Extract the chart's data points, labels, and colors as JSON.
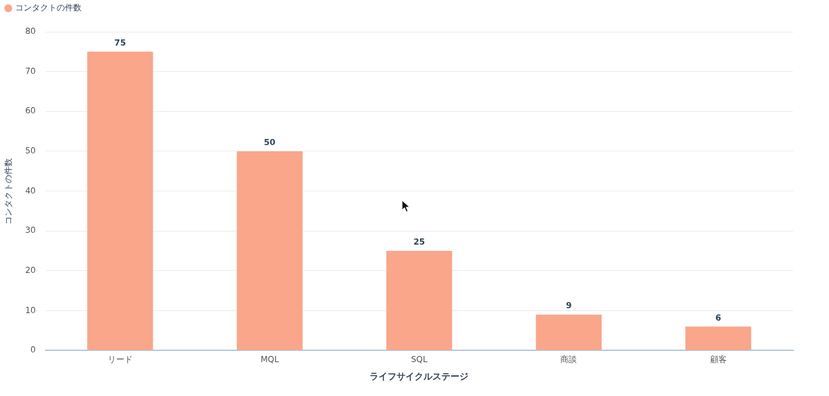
{
  "chart_data": {
    "type": "bar",
    "categories": [
      "リード",
      "MQL",
      "SQL",
      "商談",
      "顧客"
    ],
    "series": [
      {
        "name": "コンタクトの件数",
        "color": "#f9a68b",
        "values": [
          75,
          50,
          25,
          9,
          6
        ]
      }
    ],
    "xlabel": "ライフサイクルステージ",
    "ylabel": "コンタクトの件数",
    "ylim": [
      0,
      80
    ],
    "yticks": [
      0,
      10,
      20,
      30,
      40,
      50,
      60,
      70,
      80
    ],
    "grid": "y",
    "legend": "top left",
    "data_labels": true
  }
}
